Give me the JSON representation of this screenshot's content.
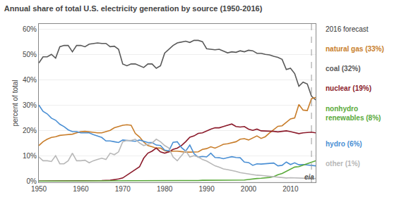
{
  "chart_data": {
    "type": "line",
    "title": "Annual share of total U.S. electricity generation by source (1950-2016)",
    "y_label": "percent of total",
    "xlim": [
      1950,
      2016
    ],
    "xticks": [
      1950,
      1960,
      1970,
      1980,
      1990,
      2000,
      2010
    ],
    "ylim": [
      -0.005,
      0.62
    ],
    "yticks": [
      {
        "value": 0.0,
        "label": "0%"
      },
      {
        "value": 0.1,
        "label": "10%"
      },
      {
        "value": 0.2,
        "label": "20%"
      },
      {
        "value": 0.3,
        "label": "30%"
      },
      {
        "value": 0.4,
        "label": "40%"
      },
      {
        "value": 0.5,
        "label": "50%"
      },
      {
        "value": 0.6,
        "label": "60%"
      }
    ],
    "grid": "y",
    "annotations": [
      {
        "text": "2016 forecast",
        "x": 2015
      },
      {
        "text": "eia"
      }
    ],
    "series": [
      {
        "name": "coal (32%)",
        "color": "#595959",
        "x": [
          1950,
          1951,
          1952,
          1953,
          1954,
          1955,
          1956,
          1957,
          1958,
          1959,
          1960,
          1961,
          1962,
          1963,
          1964,
          1965,
          1966,
          1967,
          1968,
          1969,
          1970,
          1971,
          1972,
          1973,
          1974,
          1975,
          1976,
          1977,
          1978,
          1979,
          1980,
          1981,
          1982,
          1983,
          1984,
          1985,
          1986,
          1987,
          1988,
          1989,
          1990,
          1991,
          1992,
          1993,
          1994,
          1995,
          1996,
          1997,
          1998,
          1999,
          2000,
          2001,
          2002,
          2003,
          2004,
          2005,
          2006,
          2007,
          2008,
          2009,
          2010,
          2011,
          2012,
          2013,
          2014,
          2015,
          2016
        ],
        "values": [
          0.466,
          0.49,
          0.49,
          0.5,
          0.485,
          0.53,
          0.535,
          0.535,
          0.51,
          0.535,
          0.535,
          0.53,
          0.54,
          0.543,
          0.545,
          0.543,
          0.543,
          0.53,
          0.532,
          0.52,
          0.462,
          0.455,
          0.462,
          0.462,
          0.455,
          0.448,
          0.462,
          0.462,
          0.445,
          0.455,
          0.505,
          0.52,
          0.535,
          0.545,
          0.548,
          0.552,
          0.547,
          0.555,
          0.555,
          0.55,
          0.522,
          0.52,
          0.518,
          0.52,
          0.514,
          0.506,
          0.51,
          0.508,
          0.514,
          0.51,
          0.516,
          0.514,
          0.504,
          0.504,
          0.5,
          0.498,
          0.492,
          0.488,
          0.48,
          0.44,
          0.445,
          0.424,
          0.374,
          0.39,
          0.383,
          0.335,
          0.32
        ]
      },
      {
        "name": "natural gas (33%)",
        "color": "#c87d2a",
        "x": [
          1950,
          1951,
          1952,
          1953,
          1954,
          1955,
          1956,
          1957,
          1958,
          1959,
          1960,
          1961,
          1962,
          1963,
          1964,
          1965,
          1966,
          1967,
          1968,
          1969,
          1970,
          1971,
          1972,
          1973,
          1974,
          1975,
          1976,
          1977,
          1978,
          1979,
          1980,
          1981,
          1982,
          1983,
          1984,
          1985,
          1986,
          1987,
          1988,
          1989,
          1990,
          1991,
          1992,
          1993,
          1994,
          1995,
          1996,
          1997,
          1998,
          1999,
          2000,
          2001,
          2002,
          2003,
          2004,
          2005,
          2006,
          2007,
          2008,
          2009,
          2010,
          2011,
          2012,
          2013,
          2014,
          2015,
          2016
        ],
        "values": [
          0.14,
          0.155,
          0.165,
          0.172,
          0.175,
          0.18,
          0.182,
          0.183,
          0.185,
          0.19,
          0.195,
          0.196,
          0.195,
          0.192,
          0.19,
          0.19,
          0.195,
          0.2,
          0.21,
          0.215,
          0.22,
          0.222,
          0.22,
          0.188,
          0.174,
          0.154,
          0.14,
          0.135,
          0.13,
          0.13,
          0.12,
          0.115,
          0.118,
          0.118,
          0.115,
          0.114,
          0.114,
          0.114,
          0.115,
          0.125,
          0.128,
          0.135,
          0.13,
          0.137,
          0.145,
          0.147,
          0.15,
          0.155,
          0.165,
          0.167,
          0.162,
          0.17,
          0.178,
          0.168,
          0.175,
          0.19,
          0.202,
          0.216,
          0.218,
          0.232,
          0.245,
          0.249,
          0.302,
          0.28,
          0.278,
          0.325,
          0.33
        ]
      },
      {
        "name": "nuclear (19%)",
        "color": "#8b1a2a",
        "x": [
          1950,
          1955,
          1960,
          1962,
          1963,
          1965,
          1967,
          1968,
          1969,
          1970,
          1971,
          1972,
          1973,
          1974,
          1975,
          1976,
          1977,
          1978,
          1979,
          1980,
          1981,
          1982,
          1983,
          1984,
          1985,
          1986,
          1987,
          1988,
          1989,
          1990,
          1991,
          1992,
          1993,
          1994,
          1995,
          1996,
          1997,
          1998,
          1999,
          2000,
          2001,
          2002,
          2003,
          2004,
          2005,
          2006,
          2007,
          2008,
          2009,
          2010,
          2011,
          2012,
          2013,
          2014,
          2015,
          2016
        ],
        "values": [
          0.0,
          0.0,
          0.0,
          0.001,
          0.001,
          0.002,
          0.003,
          0.005,
          0.008,
          0.012,
          0.023,
          0.032,
          0.044,
          0.056,
          0.09,
          0.11,
          0.118,
          0.13,
          0.115,
          0.11,
          0.115,
          0.125,
          0.13,
          0.14,
          0.155,
          0.173,
          0.178,
          0.188,
          0.19,
          0.198,
          0.205,
          0.21,
          0.21,
          0.215,
          0.22,
          0.225,
          0.215,
          0.213,
          0.215,
          0.205,
          0.2,
          0.205,
          0.198,
          0.198,
          0.198,
          0.196,
          0.194,
          0.196,
          0.198,
          0.195,
          0.19,
          0.187,
          0.19,
          0.192,
          0.193,
          0.19
        ]
      },
      {
        "name": "hydro (6%)",
        "color": "#4a8fd4",
        "x": [
          1950,
          1951,
          1952,
          1953,
          1954,
          1955,
          1956,
          1957,
          1958,
          1959,
          1960,
          1961,
          1962,
          1963,
          1964,
          1965,
          1966,
          1967,
          1968,
          1969,
          1970,
          1971,
          1972,
          1973,
          1974,
          1975,
          1976,
          1977,
          1978,
          1979,
          1980,
          1981,
          1982,
          1983,
          1984,
          1985,
          1986,
          1987,
          1988,
          1989,
          1990,
          1991,
          1992,
          1993,
          1994,
          1995,
          1996,
          1997,
          1998,
          1999,
          2000,
          2001,
          2002,
          2003,
          2004,
          2005,
          2006,
          2007,
          2008,
          2009,
          2010,
          2011,
          2012,
          2013,
          2014,
          2015,
          2016
        ],
        "values": [
          0.3,
          0.275,
          0.265,
          0.248,
          0.24,
          0.224,
          0.215,
          0.202,
          0.195,
          0.195,
          0.19,
          0.19,
          0.19,
          0.183,
          0.178,
          0.172,
          0.158,
          0.158,
          0.155,
          0.152,
          0.162,
          0.16,
          0.157,
          0.157,
          0.162,
          0.158,
          0.152,
          0.152,
          0.142,
          0.14,
          0.122,
          0.119,
          0.153,
          0.155,
          0.132,
          0.118,
          0.142,
          0.108,
          0.094,
          0.097,
          0.095,
          0.11,
          0.093,
          0.092,
          0.088,
          0.092,
          0.096,
          0.093,
          0.092,
          0.075,
          0.073,
          0.062,
          0.068,
          0.067,
          0.068,
          0.07,
          0.071,
          0.06,
          0.062,
          0.075,
          0.065,
          0.072,
          0.064,
          0.065,
          0.063,
          0.062,
          0.06
        ]
      },
      {
        "name": "nonhydro\nrenewables (8%)",
        "color": "#5aaa3a",
        "x": [
          1950,
          1960,
          1970,
          1975,
          1980,
          1985,
          1988,
          1989,
          1990,
          1991,
          1992,
          1993,
          1994,
          1995,
          1996,
          1997,
          1998,
          1999,
          2000,
          2001,
          2002,
          2003,
          2004,
          2005,
          2006,
          2007,
          2008,
          2009,
          2010,
          2011,
          2012,
          2013,
          2014,
          2015,
          2016
        ],
        "values": [
          0.0,
          0.0,
          0.001,
          0.001,
          0.001,
          0.001,
          0.002,
          0.003,
          0.003,
          0.003,
          0.003,
          0.003,
          0.003,
          0.003,
          0.004,
          0.004,
          0.004,
          0.004,
          0.006,
          0.009,
          0.01,
          0.011,
          0.012,
          0.014,
          0.017,
          0.025,
          0.03,
          0.039,
          0.048,
          0.055,
          0.057,
          0.062,
          0.067,
          0.074,
          0.08
        ]
      },
      {
        "name": "other (1%)",
        "color": "#b8b8b8",
        "x": [
          1950,
          1951,
          1952,
          1953,
          1954,
          1955,
          1956,
          1957,
          1958,
          1959,
          1960,
          1961,
          1962,
          1963,
          1964,
          1965,
          1966,
          1967,
          1968,
          1969,
          1970,
          1971,
          1972,
          1973,
          1974,
          1975,
          1976,
          1977,
          1978,
          1979,
          1980,
          1981,
          1982,
          1983,
          1984,
          1985,
          1986,
          1987,
          1988,
          1989,
          1990,
          1991,
          1992,
          1993,
          1994,
          1995,
          1996,
          1997,
          1998,
          1999,
          2000,
          2001,
          2002,
          2003,
          2004,
          2005,
          2006,
          2007,
          2008,
          2009,
          2010,
          2011,
          2012,
          2013,
          2014,
          2015,
          2016
        ],
        "values": [
          0.095,
          0.08,
          0.08,
          0.077,
          0.1,
          0.068,
          0.068,
          0.08,
          0.11,
          0.08,
          0.08,
          0.082,
          0.072,
          0.08,
          0.085,
          0.09,
          0.085,
          0.11,
          0.104,
          0.115,
          0.155,
          0.16,
          0.16,
          0.165,
          0.15,
          0.14,
          0.145,
          0.15,
          0.165,
          0.155,
          0.14,
          0.13,
          0.095,
          0.08,
          0.1,
          0.12,
          0.095,
          0.1,
          0.095,
          0.085,
          0.079,
          0.07,
          0.06,
          0.055,
          0.048,
          0.045,
          0.042,
          0.038,
          0.033,
          0.03,
          0.028,
          0.025,
          0.023,
          0.022,
          0.02,
          0.018,
          0.016,
          0.015,
          0.013,
          0.012,
          0.013,
          0.012,
          0.011,
          0.012,
          0.011,
          0.01,
          0.01
        ]
      }
    ]
  }
}
